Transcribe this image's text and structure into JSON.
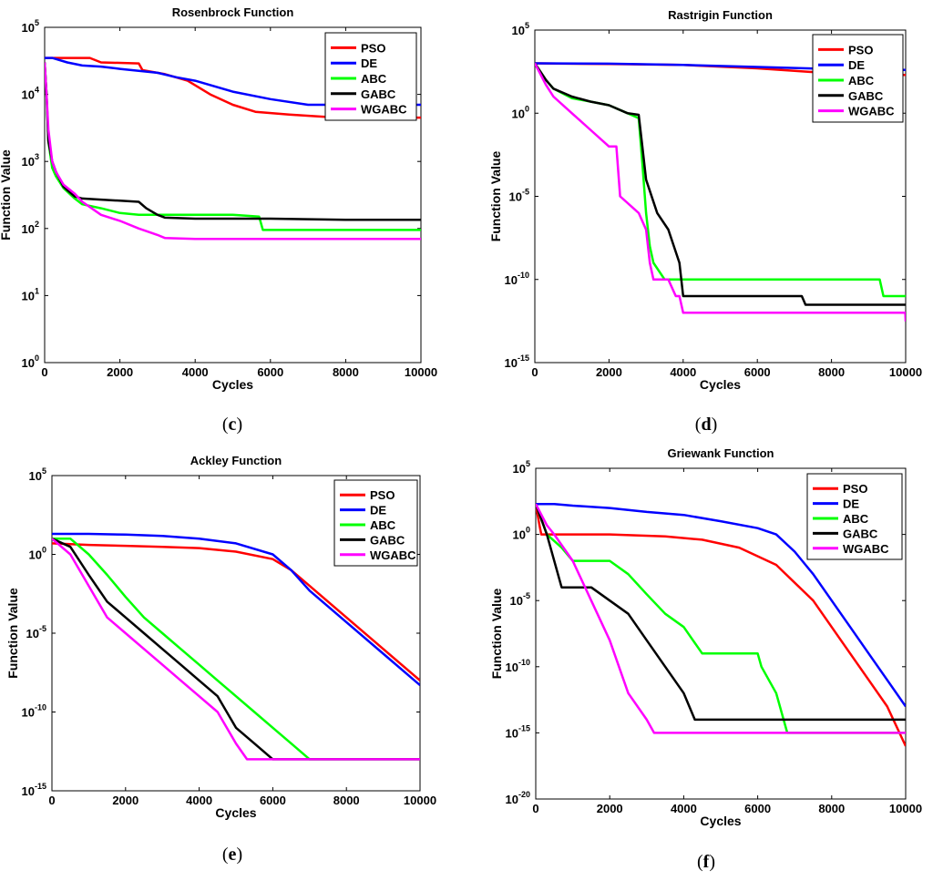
{
  "chart_data": [
    {
      "type": "line",
      "title": "Rosenbrock Function",
      "xlabel": "Cycles",
      "ylabel": "Function Value",
      "xlim": [
        0,
        10000
      ],
      "ylim": [
        1,
        100000
      ],
      "yscale": "log",
      "xticks": [
        "0",
        "2000",
        "4000",
        "6000",
        "8000",
        "10000"
      ],
      "yticks": [
        {
          "base": "10",
          "exp": "0"
        },
        {
          "base": "10",
          "exp": "1"
        },
        {
          "base": "10",
          "exp": "2"
        },
        {
          "base": "10",
          "exp": "3"
        },
        {
          "base": "10",
          "exp": "4"
        },
        {
          "base": "10",
          "exp": "5"
        }
      ],
      "legend": "top-right",
      "caption": {
        "pre": "(",
        "letter": "c",
        "post": ")"
      },
      "series": [
        {
          "name": "PSO",
          "color": "#ff0000",
          "x": [
            0,
            1200,
            1500,
            2500,
            2600,
            3200,
            3800,
            4400,
            5000,
            5600,
            6500,
            7500,
            8500,
            10000
          ],
          "y": [
            35000,
            35000,
            30000,
            29000,
            23000,
            20000,
            16000,
            10000,
            7000,
            5500,
            5000,
            4600,
            4500,
            4500
          ]
        },
        {
          "name": "DE",
          "color": "#0000ff",
          "x": [
            0,
            200,
            600,
            1000,
            1500,
            2000,
            3000,
            3500,
            4000,
            5000,
            6000,
            7000,
            8000,
            10000
          ],
          "y": [
            35000,
            35000,
            30000,
            27000,
            26000,
            24000,
            21000,
            18000,
            16000,
            11000,
            8500,
            7000,
            7000,
            7000
          ]
        },
        {
          "name": "ABC",
          "color": "#00ff00",
          "x": [
            0,
            50,
            100,
            200,
            300,
            500,
            800,
            1000,
            1500,
            2000,
            2500,
            3000,
            4000,
            5000,
            5700,
            5800,
            7000,
            10000
          ],
          "y": [
            30000,
            10000,
            2000,
            800,
            600,
            400,
            280,
            230,
            200,
            170,
            160,
            160,
            160,
            160,
            150,
            95,
            95,
            95
          ]
        },
        {
          "name": "GABC",
          "color": "#000000",
          "x": [
            0,
            50,
            100,
            200,
            300,
            500,
            800,
            1000,
            1500,
            2000,
            2500,
            2700,
            3000,
            3200,
            4000,
            6000,
            8000,
            10000
          ],
          "y": [
            30000,
            10000,
            2000,
            1000,
            700,
            420,
            300,
            280,
            270,
            260,
            250,
            200,
            160,
            145,
            140,
            140,
            135,
            135
          ]
        },
        {
          "name": "WGABC",
          "color": "#ff00ff",
          "x": [
            0,
            50,
            100,
            200,
            300,
            500,
            800,
            1000,
            1500,
            2000,
            2500,
            3000,
            3200,
            4000,
            6000,
            10000
          ],
          "y": [
            30000,
            10000,
            3000,
            1000,
            700,
            450,
            330,
            250,
            160,
            130,
            100,
            80,
            72,
            70,
            70,
            70
          ]
        }
      ]
    },
    {
      "type": "line",
      "title": "Rastrigin Function",
      "xlabel": "Cycles",
      "ylabel": "Function Value",
      "xlim": [
        0,
        10000
      ],
      "ylim": [
        1e-15,
        100000
      ],
      "yscale": "log",
      "xticks": [
        "0",
        "2000",
        "4000",
        "6000",
        "8000",
        "10000"
      ],
      "yticks": [
        {
          "base": "10",
          "exp": "-15"
        },
        {
          "base": "10",
          "exp": "-10"
        },
        {
          "base": "10",
          "exp": "-5"
        },
        {
          "base": "10",
          "exp": "0"
        },
        {
          "base": "10",
          "exp": "5"
        }
      ],
      "legend": "top-right",
      "caption": {
        "pre": "(",
        "letter": "d",
        "post": ")"
      },
      "series": [
        {
          "name": "PSO",
          "color": "#ff0000",
          "x": [
            0,
            2000,
            4000,
            6000,
            7000,
            8000,
            9000,
            10000
          ],
          "y": [
            1000,
            900,
            800,
            500,
            350,
            250,
            200,
            200
          ]
        },
        {
          "name": "DE",
          "color": "#0000ff",
          "x": [
            0,
            2000,
            4000,
            6000,
            8000,
            10000
          ],
          "y": [
            1000,
            950,
            800,
            600,
            450,
            400
          ]
        },
        {
          "name": "ABC",
          "color": "#00ff00",
          "x": [
            0,
            300,
            500,
            1000,
            1500,
            2000,
            2500,
            2800,
            2900,
            3000,
            3100,
            3200,
            3500,
            3800,
            4000,
            6000,
            9300,
            9400,
            10000
          ],
          "y": [
            1000,
            100,
            30,
            8,
            5,
            3,
            1,
            0.5,
            0.001,
            1e-06,
            1e-08,
            1e-09,
            1e-10,
            1e-10,
            1e-10,
            1e-10,
            1e-10,
            1e-11,
            1e-11
          ]
        },
        {
          "name": "GABC",
          "color": "#000000",
          "x": [
            0,
            300,
            500,
            1000,
            1500,
            2000,
            2500,
            2800,
            2900,
            3000,
            3300,
            3600,
            3900,
            4000,
            4200,
            7200,
            7300,
            10000
          ],
          "y": [
            1000,
            100,
            30,
            10,
            5,
            3,
            1,
            0.8,
            0.01,
            0.0001,
            1e-06,
            1e-07,
            1e-09,
            1e-11,
            1e-11,
            1e-11,
            3e-12,
            3e-12
          ]
        },
        {
          "name": "WGABC",
          "color": "#ff00ff",
          "x": [
            0,
            300,
            500,
            1000,
            1500,
            2000,
            2200,
            2300,
            2800,
            3000,
            3100,
            3200,
            3600,
            3800,
            3900,
            4000,
            9990,
            10000
          ],
          "y": [
            1000,
            50,
            10,
            1,
            0.1,
            0.01,
            0.01,
            1e-05,
            1e-06,
            1e-07,
            1e-09,
            1e-10,
            1e-10,
            1e-11,
            1e-11,
            1e-12,
            1e-12,
            3e-13
          ]
        }
      ]
    },
    {
      "type": "line",
      "title": "Ackley Function",
      "xlabel": "Cycles",
      "ylabel": "Function Value",
      "xlim": [
        0,
        10000
      ],
      "ylim": [
        1e-15,
        100000
      ],
      "yscale": "log",
      "xticks": [
        "0",
        "2000",
        "4000",
        "6000",
        "8000",
        "10000"
      ],
      "yticks": [
        {
          "base": "10",
          "exp": "-15"
        },
        {
          "base": "10",
          "exp": "-10"
        },
        {
          "base": "10",
          "exp": "-5"
        },
        {
          "base": "10",
          "exp": "0"
        },
        {
          "base": "10",
          "exp": "5"
        }
      ],
      "legend": "top-right",
      "caption": {
        "pre": "(",
        "letter": "e",
        "post": ")"
      },
      "series": [
        {
          "name": "PSO",
          "color": "#ff0000",
          "x": [
            0,
            1000,
            2000,
            3000,
            4000,
            5000,
            6000,
            6500,
            7000,
            8000,
            9000,
            10000
          ],
          "y": [
            5,
            4,
            3.5,
            3,
            2.5,
            1.5,
            0.5,
            0.1,
            0.01,
            0.0001,
            1e-06,
            1e-08
          ]
        },
        {
          "name": "DE",
          "color": "#0000ff",
          "x": [
            0,
            1000,
            2000,
            3000,
            4000,
            5000,
            6000,
            6500,
            7000,
            8000,
            9000,
            10000
          ],
          "y": [
            20,
            20,
            18,
            15,
            10,
            5,
            1,
            0.1,
            0.005,
            5e-05,
            5e-07,
            5e-09
          ]
        },
        {
          "name": "ABC",
          "color": "#00ff00",
          "x": [
            0,
            500,
            1000,
            1500,
            2000,
            2500,
            3000,
            3500,
            4000,
            4500,
            5000,
            5500,
            6000,
            6500,
            7000,
            10000
          ],
          "y": [
            10,
            10,
            1,
            0.05,
            0.002,
            0.0001,
            1e-05,
            1e-06,
            1e-07,
            1e-08,
            1e-09,
            1e-10,
            1e-11,
            1e-12,
            1e-13,
            1e-13
          ]
        },
        {
          "name": "GABC",
          "color": "#000000",
          "x": [
            0,
            500,
            1000,
            1500,
            2000,
            2500,
            3000,
            3500,
            4000,
            4500,
            5000,
            5500,
            6000,
            6500,
            10000
          ],
          "y": [
            10,
            3,
            0.05,
            0.001,
            0.0001,
            1e-05,
            1e-06,
            1e-07,
            1e-08,
            1e-09,
            1e-11,
            1e-12,
            1e-13,
            1e-13,
            1e-13
          ]
        },
        {
          "name": "WGABC",
          "color": "#ff00ff",
          "x": [
            0,
            500,
            1000,
            1500,
            2000,
            2500,
            3000,
            3500,
            4000,
            4500,
            5000,
            5300,
            5500,
            10000
          ],
          "y": [
            10,
            1,
            0.01,
            0.0001,
            1e-05,
            1e-06,
            1e-07,
            1e-08,
            1e-09,
            1e-10,
            1e-12,
            1e-13,
            1e-13,
            1e-13
          ]
        }
      ]
    },
    {
      "type": "line",
      "title": "Griewank Function",
      "xlabel": "Cycles",
      "ylabel": "Function Value",
      "xlim": [
        0,
        10000
      ],
      "ylim": [
        1e-20,
        100000
      ],
      "yscale": "log",
      "xticks": [
        "0",
        "2000",
        "4000",
        "6000",
        "8000",
        "10000"
      ],
      "yticks": [
        {
          "base": "10",
          "exp": "-20"
        },
        {
          "base": "10",
          "exp": "-15"
        },
        {
          "base": "10",
          "exp": "-10"
        },
        {
          "base": "10",
          "exp": "-5"
        },
        {
          "base": "10",
          "exp": "0"
        },
        {
          "base": "10",
          "exp": "5"
        }
      ],
      "legend": "top-right",
      "caption": {
        "pre": "(",
        "letter": "f",
        "post": ")"
      },
      "series": [
        {
          "name": "PSO",
          "color": "#ff0000",
          "x": [
            0,
            100,
            150,
            500,
            2000,
            3500,
            4500,
            5500,
            6500,
            7500,
            8500,
            9000,
            9500,
            10000
          ],
          "y": [
            200,
            5,
            1,
            1,
            1,
            0.7,
            0.4,
            0.1,
            0.005,
            1e-05,
            1e-09,
            1e-11,
            1e-13,
            1e-16
          ]
        },
        {
          "name": "DE",
          "color": "#0000ff",
          "x": [
            0,
            500,
            1000,
            2000,
            3000,
            4000,
            5000,
            6000,
            6500,
            7000,
            7500,
            8000,
            8500,
            9000,
            9500,
            10000
          ],
          "y": [
            200,
            200,
            150,
            100,
            50,
            30,
            10,
            3,
            1,
            0.05,
            0.001,
            1e-05,
            1e-07,
            1e-09,
            1e-11,
            1e-13
          ]
        },
        {
          "name": "ABC",
          "color": "#00ff00",
          "x": [
            0,
            300,
            700,
            1000,
            1500,
            2000,
            2500,
            3000,
            3500,
            4000,
            4500,
            5000,
            6000,
            6100,
            6500,
            6800,
            7000,
            10000
          ],
          "y": [
            200,
            1,
            0.1,
            0.01,
            0.01,
            0.01,
            0.001,
            3e-05,
            1e-06,
            1e-07,
            1e-09,
            1e-09,
            1e-09,
            1e-10,
            1e-12,
            1e-15,
            1e-15,
            1e-15
          ]
        },
        {
          "name": "GABC",
          "color": "#000000",
          "x": [
            0,
            300,
            700,
            1000,
            1500,
            2000,
            2500,
            3000,
            3500,
            4000,
            4300,
            4400,
            10000
          ],
          "y": [
            200,
            1,
            0.0001,
            0.0001,
            0.0001,
            1e-05,
            1e-06,
            1e-08,
            1e-10,
            1e-12,
            1e-14,
            1e-14,
            1e-14
          ]
        },
        {
          "name": "WGABC",
          "color": "#ff00ff",
          "x": [
            0,
            300,
            500,
            1000,
            1500,
            2000,
            2500,
            3000,
            3200,
            10000
          ],
          "y": [
            200,
            5,
            1,
            0.01,
            1e-05,
            1e-08,
            1e-12,
            1e-14,
            1e-15,
            1e-15
          ]
        }
      ]
    }
  ]
}
